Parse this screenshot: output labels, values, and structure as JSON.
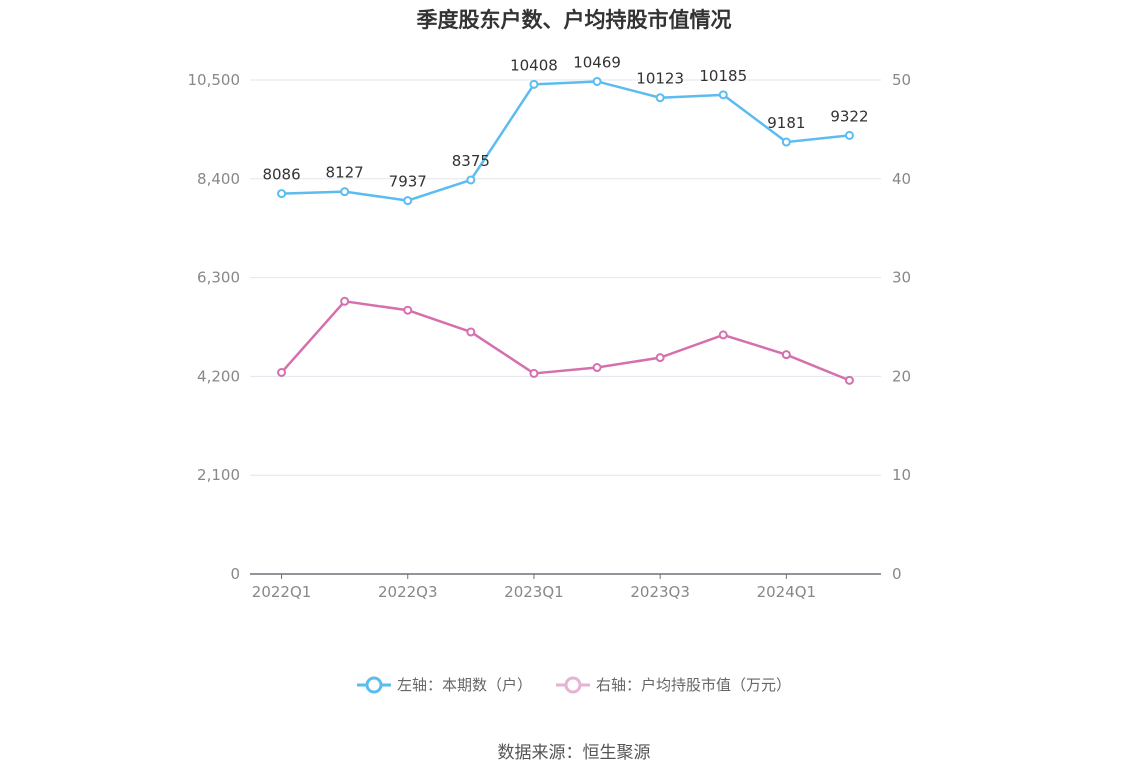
{
  "title": "季度股东户数、户均持股市值情况",
  "source": "数据来源：恒生聚源",
  "chart_data": {
    "type": "line",
    "x": [
      "2022Q1",
      "2022Q2",
      "2022Q3",
      "2022Q4",
      "2023Q1",
      "2023Q2",
      "2023Q3",
      "2023Q4",
      "2024Q1",
      "2024Q2"
    ],
    "x_tick_labels": [
      "2022Q1",
      "2022Q3",
      "2023Q1",
      "2023Q3",
      "2024Q1"
    ],
    "series": [
      {
        "name": "左轴：本期数（户）",
        "axis": "left",
        "color": "#5bbcf0",
        "values": [
          8086,
          8127,
          7937,
          8375,
          10408,
          10469,
          10123,
          10185,
          9181,
          9322
        ],
        "labels": [
          "8086",
          "8127",
          "7937",
          "8375",
          "10408",
          "10469",
          "10123",
          "10185",
          "9181",
          "9322"
        ]
      },
      {
        "name": "右轴：户均持股市值（万元）",
        "axis": "right",
        "color": "#d56fae",
        "values": [
          20.4,
          27.6,
          26.7,
          24.5,
          20.3,
          20.9,
          21.9,
          24.2,
          22.2,
          19.6
        ]
      }
    ],
    "left_axis": {
      "min": 0,
      "max": 10500,
      "ticks": [
        0,
        2100,
        4200,
        6300,
        8400,
        10500
      ],
      "tick_labels": [
        "0",
        "2,100",
        "4,200",
        "6,300",
        "8,400",
        "10,500"
      ]
    },
    "right_axis": {
      "min": 0,
      "max": 50,
      "ticks": [
        0,
        10,
        20,
        30,
        40,
        50
      ],
      "tick_labels": [
        "0",
        "10",
        "20",
        "30",
        "40",
        "50"
      ]
    },
    "grid": true,
    "legend_position": "bottom"
  }
}
